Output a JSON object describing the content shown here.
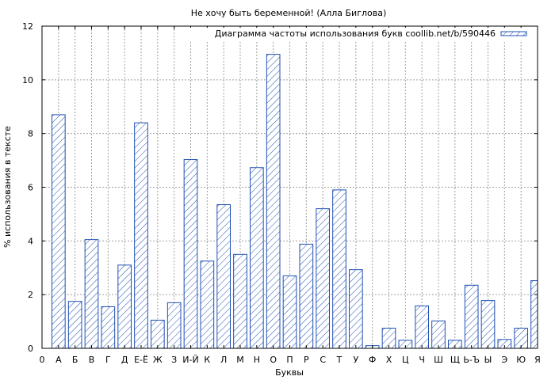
{
  "chart_data": {
    "type": "bar",
    "title": "Не хочу быть беременной! (Алла Биглова)",
    "xlabel": "Буквы",
    "ylabel": "% использования в тексте",
    "ylim": [
      0,
      12
    ],
    "yticks": [
      "0",
      "2",
      "4",
      "6",
      "8",
      "10",
      "12"
    ],
    "x_origin_label": "0",
    "grid": true,
    "legend_position": "top-right",
    "categories": [
      "А",
      "Б",
      "В",
      "Г",
      "Д",
      "Е-Ё",
      "Ж",
      "З",
      "И-Й",
      "К",
      "Л",
      "М",
      "Н",
      "О",
      "П",
      "Р",
      "С",
      "Т",
      "У",
      "Ф",
      "Х",
      "Ц",
      "Ч",
      "Ш",
      "Щ",
      "Ь-Ъ",
      "Ы",
      "Э",
      "Ю",
      "Я"
    ],
    "series": [
      {
        "name": "Диаграмма частоты использования букв coollib.net/b/590446",
        "color": "#1f4fb4",
        "values": [
          8.7,
          1.75,
          4.05,
          1.55,
          3.1,
          8.4,
          1.05,
          1.7,
          7.03,
          3.25,
          5.35,
          3.5,
          6.73,
          10.95,
          2.7,
          3.88,
          5.2,
          5.9,
          2.93,
          0.1,
          0.75,
          0.3,
          1.58,
          1.02,
          0.3,
          2.35,
          1.78,
          0.33,
          0.75,
          2.52
        ]
      }
    ]
  }
}
